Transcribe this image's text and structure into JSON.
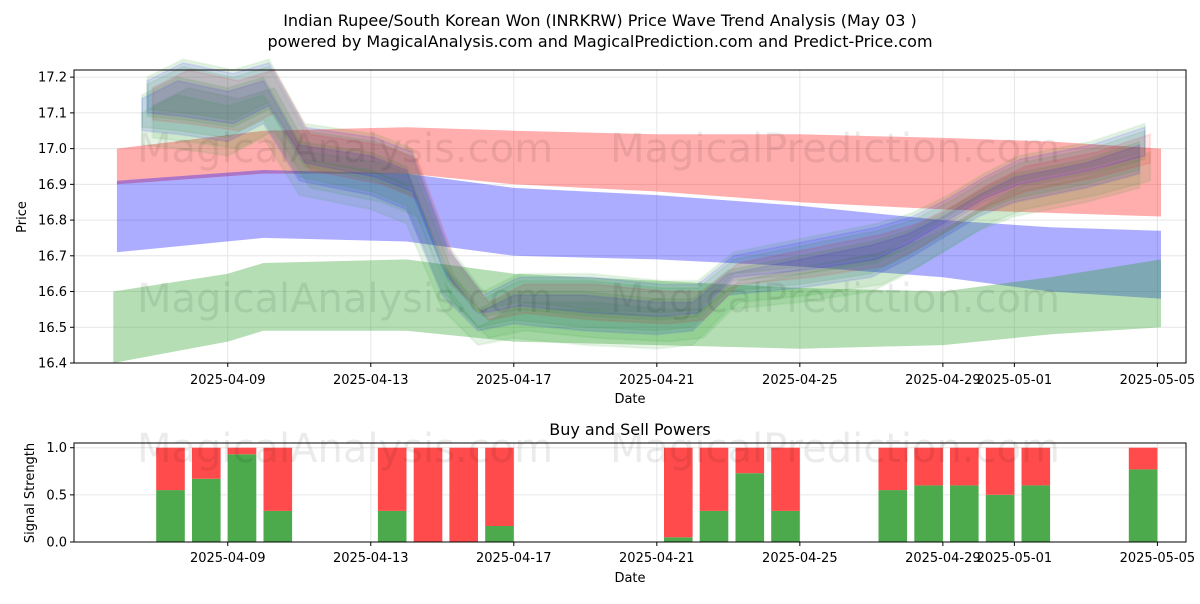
{
  "title": {
    "line1": "Indian Rupee/South Korean Won (INRKRW) Price Wave Trend Analysis (May 03 )",
    "line2": "powered by MagicalAnalysis.com and MagicalPrediction.com and Predict-Price.com"
  },
  "watermarks": [
    "MagicalAnalysis.com",
    "MagicalPrediction.com"
  ],
  "colors": {
    "green": "#2ca02c",
    "red": "#ff0000",
    "blue": "#0000ff",
    "buy": "#4caa4c",
    "sell": "#ff4b4b",
    "grid": "#e6e6e6"
  },
  "chart_data": [
    {
      "type": "area",
      "title": "",
      "xlabel": "Date",
      "ylabel": "Price",
      "ylim": [
        16.4,
        17.22
      ],
      "xlim_days": [
        -4.3,
        26.8
      ],
      "x_ticks": [
        {
          "day": 0,
          "label": "2025-04-09"
        },
        {
          "day": 4,
          "label": "2025-04-13"
        },
        {
          "day": 8,
          "label": "2025-04-17"
        },
        {
          "day": 12,
          "label": "2025-04-21"
        },
        {
          "day": 16,
          "label": "2025-04-25"
        },
        {
          "day": 20,
          "label": "2025-04-29"
        },
        {
          "day": 22,
          "label": "2025-05-01"
        },
        {
          "day": 26,
          "label": "2025-05-05"
        }
      ],
      "y_ticks": [
        "16.4",
        "16.5",
        "16.6",
        "16.7",
        "16.8",
        "16.9",
        "17.0",
        "17.1",
        "17.2"
      ],
      "grid": true,
      "long_bands": [
        {
          "name": "red band",
          "color": "red",
          "opacity": 0.32,
          "x": [
            -3.1,
            1,
            5,
            8,
            12,
            16,
            20,
            23,
            26.1
          ],
          "upper": [
            17.0,
            17.05,
            17.06,
            17.05,
            17.04,
            17.04,
            17.03,
            17.02,
            17.0
          ],
          "lower": [
            16.9,
            16.93,
            16.93,
            16.9,
            16.88,
            16.85,
            16.83,
            16.82,
            16.81
          ]
        },
        {
          "name": "purple band",
          "color": "blue",
          "opacity": 0.32,
          "x": [
            -3.1,
            1,
            5,
            8,
            12,
            16,
            20,
            23,
            26.1
          ],
          "upper": [
            16.91,
            16.94,
            16.93,
            16.89,
            16.87,
            16.84,
            16.8,
            16.78,
            16.77
          ],
          "lower": [
            16.71,
            16.75,
            16.74,
            16.7,
            16.69,
            16.67,
            16.64,
            16.6,
            16.58
          ]
        },
        {
          "name": "lower green band",
          "color": "green",
          "opacity": 0.35,
          "x": [
            -3.2,
            0,
            1,
            5,
            8,
            12,
            16,
            20,
            23,
            26.1
          ],
          "upper": [
            16.6,
            16.65,
            16.68,
            16.69,
            16.65,
            16.63,
            16.61,
            16.6,
            16.64,
            16.69
          ],
          "lower": [
            16.4,
            16.46,
            16.49,
            16.49,
            16.46,
            16.45,
            16.44,
            16.45,
            16.48,
            16.5
          ]
        }
      ],
      "wave_centers": {
        "x": [
          -2.4,
          -1.4,
          0,
          1,
          2,
          4,
          5,
          6,
          7,
          8,
          10,
          12,
          13,
          14,
          16,
          18,
          19,
          20,
          21,
          22,
          24,
          25.5
        ],
        "upper_path": [
          17.15,
          17.2,
          17.17,
          17.2,
          17.02,
          16.99,
          16.95,
          16.68,
          16.55,
          16.6,
          16.6,
          16.58,
          16.58,
          16.66,
          16.7,
          16.74,
          16.77,
          16.82,
          16.88,
          16.93,
          16.97,
          17.02
        ],
        "lower_path": [
          17.06,
          17.05,
          17.03,
          17.08,
          16.92,
          16.88,
          16.84,
          16.6,
          16.5,
          16.52,
          16.5,
          16.49,
          16.5,
          16.6,
          16.62,
          16.65,
          16.7,
          16.76,
          16.82,
          16.86,
          16.9,
          16.94
        ]
      }
    },
    {
      "type": "bar",
      "title": "Buy and Sell Powers",
      "xlabel": "Date",
      "ylabel": "Signal Strength",
      "ylim": [
        0,
        1.05
      ],
      "y_ticks": [
        "0.0",
        "0.5",
        "1.0"
      ],
      "x_ticks": [
        {
          "day": 0,
          "label": "2025-04-09"
        },
        {
          "day": 4,
          "label": "2025-04-13"
        },
        {
          "day": 8,
          "label": "2025-04-17"
        },
        {
          "day": 12,
          "label": "2025-04-21"
        },
        {
          "day": 16,
          "label": "2025-04-25"
        },
        {
          "day": 20,
          "label": "2025-04-29"
        },
        {
          "day": 22,
          "label": "2025-05-01"
        },
        {
          "day": 26,
          "label": "2025-05-05"
        }
      ],
      "categories": [
        "2025-04-07",
        "2025-04-08",
        "2025-04-09",
        "2025-04-10",
        "2025-04-14",
        "2025-04-15",
        "2025-04-16",
        "2025-04-17",
        "2025-04-22",
        "2025-04-23",
        "2025-04-24",
        "2025-04-25",
        "2025-04-28",
        "2025-04-29",
        "2025-04-30",
        "2025-05-01",
        "2025-05-02",
        "2025-05-05"
      ],
      "days": [
        -1.6,
        -0.6,
        0.4,
        1.4,
        4.6,
        5.6,
        6.6,
        7.6,
        12.6,
        13.6,
        14.6,
        15.6,
        18.6,
        19.6,
        20.6,
        21.6,
        22.6,
        25.6
      ],
      "series": [
        {
          "name": "Buy",
          "color": "buy",
          "values": [
            0.55,
            0.67,
            0.93,
            0.33,
            0.33,
            0.0,
            0.0,
            0.17,
            0.05,
            0.33,
            0.73,
            0.33,
            0.55,
            0.6,
            0.6,
            0.5,
            0.6,
            0.77
          ]
        },
        {
          "name": "Sell",
          "color": "sell",
          "values": [
            0.45,
            0.33,
            0.07,
            0.67,
            0.67,
            1.0,
            1.0,
            0.83,
            0.95,
            0.67,
            0.27,
            0.67,
            0.45,
            0.4,
            0.4,
            0.5,
            0.4,
            0.23
          ]
        }
      ]
    }
  ]
}
